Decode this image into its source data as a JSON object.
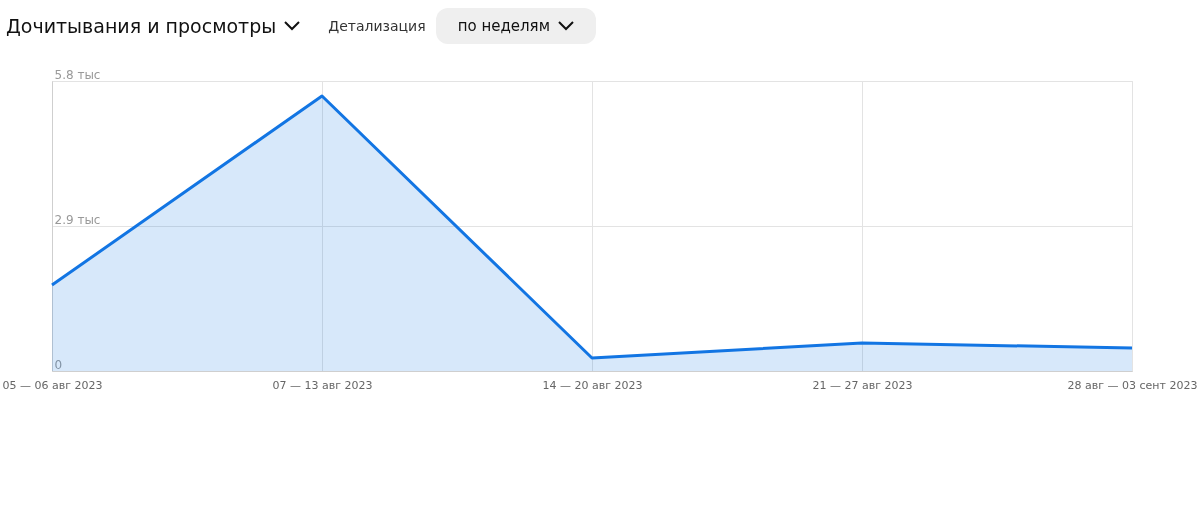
{
  "chart_data": {
    "type": "area",
    "title": "Дочитывания и просмотры",
    "annotations": [
      "Детализация",
      "по неделям"
    ],
    "categories": [
      "05 — 06 авг 2023",
      "07 — 13 авг 2023",
      "14 — 20 авг 2023",
      "21 — 27 авг 2023",
      "28 авг — 03 сент 2023"
    ],
    "series": [
      {
        "color": "#1275e3",
        "values": [
          1.72,
          5.5,
          0.26,
          0.56,
          0.46
        ]
      }
    ],
    "ylim": [
      0,
      5.8
    ],
    "yticks": [
      0,
      {
        "value": 2.9,
        "label": "2.9 тыс"
      },
      {
        "value": 5.8,
        "label": "5.8 тыс"
      }
    ],
    "grid": true
  }
}
